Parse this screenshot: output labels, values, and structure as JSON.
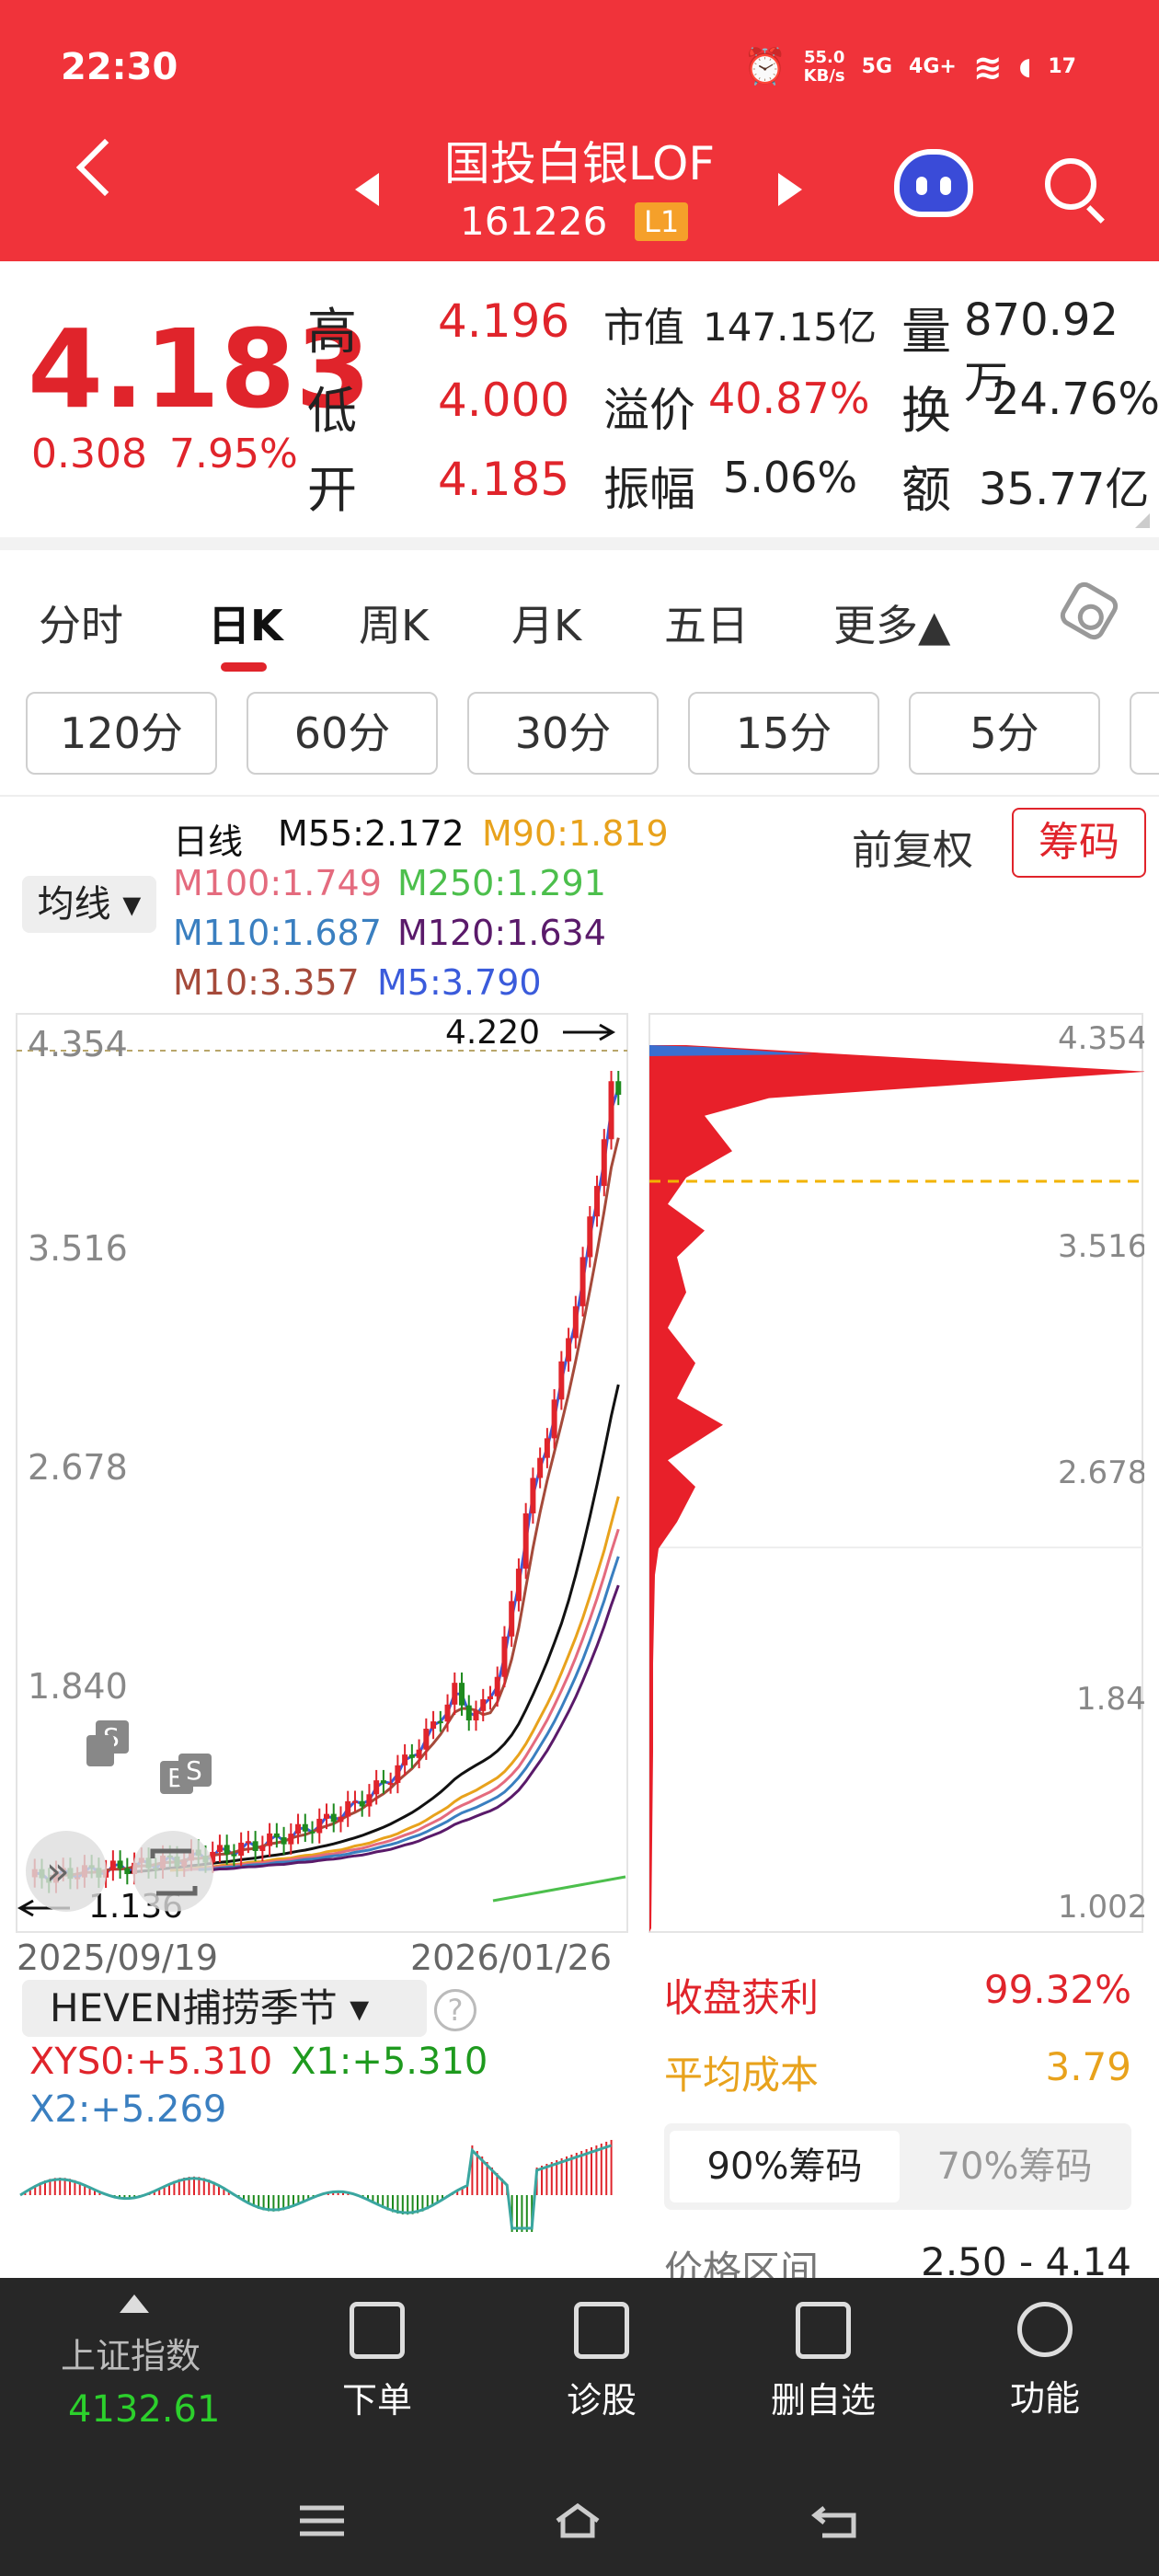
{
  "status": {
    "time": "22:30",
    "net_speed": "55.0",
    "net_unit": "KB/s",
    "sig1": "5G",
    "sig2": "4G+",
    "battery": "17"
  },
  "header": {
    "title": "国投白银LOF",
    "code": "161226",
    "level": "L1"
  },
  "quote": {
    "price": "4.183",
    "change": "0.308",
    "change_pct": "7.95%",
    "high_label": "高",
    "high": "4.196",
    "low_label": "低",
    "low": "4.000",
    "open_label": "开",
    "open": "4.185",
    "mktcap_label": "市值",
    "mktcap": "147.15亿",
    "premium_label": "溢价",
    "premium": "40.87%",
    "amp_label": "振幅",
    "amp": "5.06%",
    "vol_label": "量",
    "vol": "870.92万",
    "turn_label": "换",
    "turn": "24.76%",
    "amt_label": "额",
    "amt": "35.77亿"
  },
  "tabs": [
    "分时",
    "日K",
    "周K",
    "月K",
    "五日",
    "更多▲"
  ],
  "intervals": [
    "120分",
    "60分",
    "30分",
    "15分",
    "5分"
  ],
  "ma": {
    "button": "均线",
    "daily": "日线",
    "m55": "M55:2.172",
    "m90": "M90:1.819",
    "m100": "M100:1.749",
    "m250": "M250:1.291",
    "m110": "M110:1.687",
    "m120": "M120:1.634",
    "m10": "M10:3.357",
    "m5": "M5:3.790",
    "adjust": "前复权",
    "chips": "筹码"
  },
  "colors": {
    "m55": "#111111",
    "m90": "#E8A21C",
    "m100": "#E46B7E",
    "m250": "#4CBF4C",
    "m110": "#3A7FC0",
    "m120": "#5A1A6A",
    "m10": "#A54A3A",
    "m5": "#3A5BDB",
    "up": "#E0242B",
    "down": "#1E8A1E"
  },
  "kchart": {
    "yticks": [
      "4.354",
      "3.516",
      "2.678",
      "1.840"
    ],
    "high_label": "4.220",
    "low_label": "1.136",
    "date_start": "2025/09/19",
    "date_end": "2026/01/26"
  },
  "chip_chart": {
    "yticks": [
      "4.354",
      "3.516",
      "2.678",
      "1.84",
      "1.002"
    ]
  },
  "indicator": {
    "name": "HEVEN捕捞季节",
    "xys0": "XYS0:+5.310",
    "x1": "X1:+5.310",
    "x2": "X2:+5.269"
  },
  "chip_info": {
    "profit_label": "收盘获利",
    "profit": "99.32%",
    "avg_label": "平均成本",
    "avg": "3.79",
    "tab90": "90%筹码",
    "tab70": "70%筹码",
    "range_label": "价格区间",
    "range": "2.50 - 4.14"
  },
  "bottom": {
    "index_label": "上证指数",
    "index_val": "4132.61",
    "order": "下单",
    "diagnose": "诊股",
    "remove": "删自选",
    "func": "功能"
  }
}
